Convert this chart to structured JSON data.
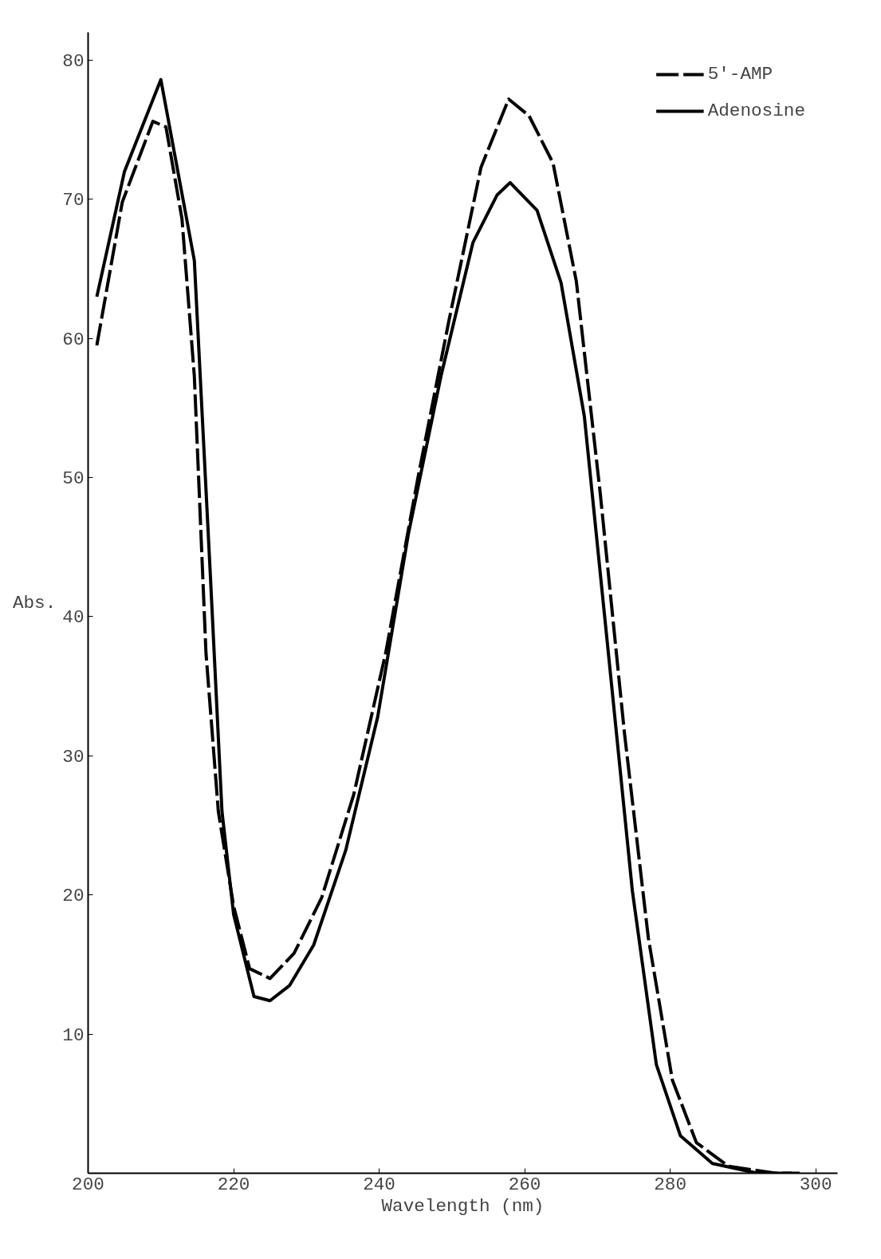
{
  "chart_data": {
    "type": "line",
    "xlabel": "Wavelength (nm)",
    "ylabel": "Abs.",
    "xlim": [
      200,
      303
    ],
    "ylim": [
      0,
      82
    ],
    "xticks": [
      200,
      220,
      240,
      260,
      280,
      300
    ],
    "yticks": [
      10,
      20,
      30,
      40,
      50,
      60,
      70,
      80
    ],
    "grid": false,
    "legend": "top right",
    "marker": "none",
    "series": [
      {
        "name": "5'-AMP",
        "color": "#000000",
        "line_style": "dashed",
        "x": [
          201.2,
          204.7,
          208.9,
          210.7,
          212.9,
          214.6,
          216.2,
          217.9,
          220,
          222.2,
          225,
          228.3,
          232.1,
          236.5,
          240.9,
          245.3,
          249.6,
          254,
          257.8,
          260.6,
          263.9,
          267.1,
          270.4,
          273.7,
          277,
          280.3,
          283.6,
          288,
          294.5,
          297.8
        ],
        "values": [
          59.5,
          69.8,
          75.6,
          75.2,
          68.6,
          57.3,
          37.4,
          26,
          19.2,
          14.7,
          14,
          15.8,
          19.8,
          27.2,
          37.4,
          49.9,
          61.3,
          72.3,
          77.2,
          76,
          72.6,
          64.1,
          48.8,
          31.7,
          16.9,
          6.7,
          2.2,
          0.5,
          0,
          0
        ]
      },
      {
        "name": "Adenosine",
        "color": "#000000",
        "line_style": "solid",
        "x": [
          201.2,
          205,
          210,
          214.6,
          216.8,
          218.4,
          220,
          222.8,
          225,
          227.7,
          231,
          235.4,
          239.8,
          244,
          248.5,
          252.9,
          256.2,
          258,
          261.7,
          265,
          268.2,
          271.5,
          274.8,
          278.1,
          281.4,
          285.8,
          292,
          296.7
        ],
        "values": [
          63,
          72,
          78.6,
          65.6,
          43,
          26,
          18.6,
          12.7,
          12.4,
          13.5,
          16.4,
          23.2,
          32.8,
          45.9,
          57.3,
          66.9,
          70.3,
          71.2,
          69.2,
          64,
          54.4,
          37.4,
          20.3,
          7.8,
          2.7,
          0.7,
          0,
          0
        ]
      }
    ]
  }
}
